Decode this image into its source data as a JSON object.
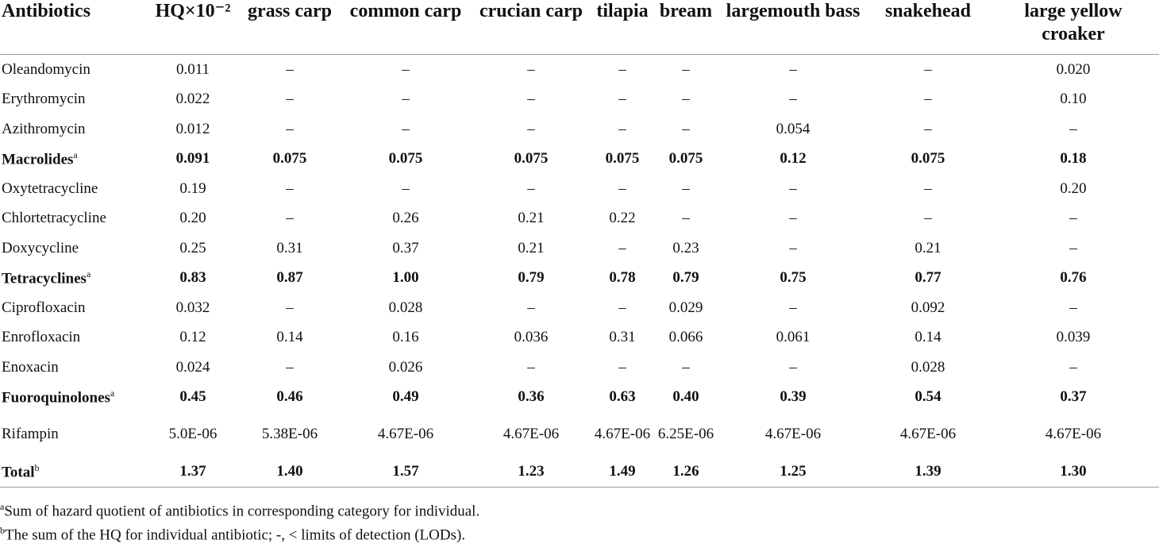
{
  "table": {
    "headers": [
      "Antibiotics",
      "HQ×10⁻²",
      "grass carp",
      "common carp",
      "crucian carp",
      "tilapia",
      "bream",
      "largemouth bass",
      "snakehead",
      "large yellow croaker"
    ],
    "rows": [
      {
        "name": "Oleandomycin",
        "sup": "",
        "bold": false,
        "values": [
          "0.011",
          "–",
          "–",
          "–",
          "–",
          "–",
          "–",
          "–",
          "0.020"
        ]
      },
      {
        "name": "Erythromycin",
        "sup": "",
        "bold": false,
        "values": [
          "0.022",
          "–",
          "–",
          "–",
          "–",
          "–",
          "–",
          "–",
          "0.10"
        ]
      },
      {
        "name": "Azithromycin",
        "sup": "",
        "bold": false,
        "values": [
          "0.012",
          "–",
          "–",
          "–",
          "–",
          "–",
          "0.054",
          "–",
          "–"
        ]
      },
      {
        "name": "Macrolides",
        "sup": "a",
        "bold": true,
        "values": [
          "0.091",
          "0.075",
          "0.075",
          "0.075",
          "0.075",
          "0.075",
          "0.12",
          "0.075",
          "0.18"
        ]
      },
      {
        "name": "Oxytetracycline",
        "sup": "",
        "bold": false,
        "values": [
          "0.19",
          "–",
          "–",
          "–",
          "–",
          "–",
          "–",
          "–",
          "0.20"
        ]
      },
      {
        "name": "Chlortetracycline",
        "sup": "",
        "bold": false,
        "values": [
          "0.20",
          "–",
          "0.26",
          "0.21",
          "0.22",
          "–",
          "–",
          "–",
          "–"
        ]
      },
      {
        "name": "Doxycycline",
        "sup": "",
        "bold": false,
        "values": [
          "0.25",
          "0.31",
          "0.37",
          "0.21",
          "–",
          "0.23",
          "–",
          "0.21",
          "–"
        ]
      },
      {
        "name": "Tetracyclines",
        "sup": "a",
        "bold": true,
        "values": [
          "0.83",
          "0.87",
          "1.00",
          "0.79",
          "0.78",
          "0.79",
          "0.75",
          "0.77",
          "0.76"
        ]
      },
      {
        "name": "Ciprofloxacin",
        "sup": "",
        "bold": false,
        "values": [
          "0.032",
          "–",
          "0.028",
          "–",
          "–",
          "0.029",
          "–",
          "0.092",
          "–"
        ]
      },
      {
        "name": "Enrofloxacin",
        "sup": "",
        "bold": false,
        "values": [
          "0.12",
          "0.14",
          "0.16",
          "0.036",
          "0.31",
          "0.066",
          "0.061",
          "0.14",
          "0.039"
        ]
      },
      {
        "name": "Enoxacin",
        "sup": "",
        "bold": false,
        "values": [
          "0.024",
          "–",
          "0.026",
          "–",
          "–",
          "–",
          "–",
          "0.028",
          "–"
        ]
      },
      {
        "name": "Fuoroquinolones",
        "sup": "a",
        "bold": true,
        "values": [
          "0.45",
          "0.46",
          "0.49",
          "0.36",
          "0.63",
          "0.40",
          "0.39",
          "0.54",
          "0.37"
        ]
      },
      {
        "name": "Rifampin",
        "sup": "",
        "bold": false,
        "values": [
          "5.0E-06",
          "5.38E-06",
          "4.67E-06",
          "4.67E-06",
          "4.67E-06",
          "6.25E-06",
          "4.67E-06",
          "4.67E-06",
          "4.67E-06"
        ]
      },
      {
        "name": "Total",
        "sup": "b",
        "bold": true,
        "values": [
          "1.37",
          "1.40",
          "1.57",
          "1.23",
          "1.49",
          "1.26",
          "1.25",
          "1.39",
          "1.30"
        ]
      }
    ]
  },
  "footnotes": {
    "a_mark": "a",
    "a_text": "Sum of hazard quotient of antibiotics in corresponding category for individual.",
    "b_mark": "b",
    "b_text": "The sum of the HQ for individual antibiotic; -, < limits of detection (LODs)."
  }
}
